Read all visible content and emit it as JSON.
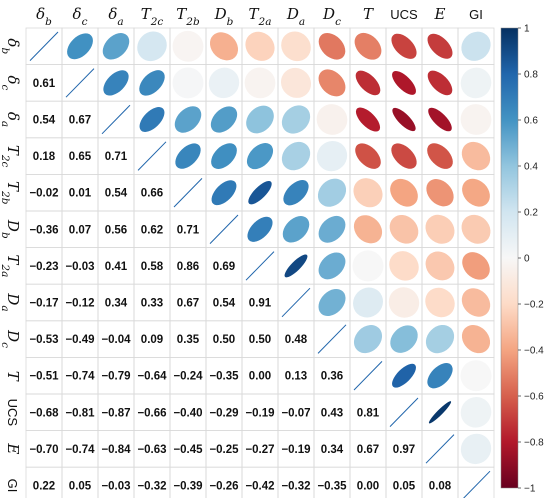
{
  "chart_data": {
    "type": "heatmap",
    "title": "",
    "variables": [
      {
        "base": "δ",
        "sub": "b",
        "italic": true
      },
      {
        "base": "δ",
        "sub": "c",
        "italic": true
      },
      {
        "base": "δ",
        "sub": "a",
        "italic": true
      },
      {
        "base": "T",
        "sub": "2c",
        "italic": true
      },
      {
        "base": "T",
        "sub": "2b",
        "italic": true
      },
      {
        "base": "D",
        "sub": "b",
        "italic": true
      },
      {
        "base": "T",
        "sub": "2a",
        "italic": true
      },
      {
        "base": "D",
        "sub": "a",
        "italic": true
      },
      {
        "base": "D",
        "sub": "c",
        "italic": true
      },
      {
        "base": "T",
        "sub": "",
        "italic": true
      },
      {
        "base": "UCS",
        "sub": "",
        "italic": false
      },
      {
        "base": "E",
        "sub": "",
        "italic": true
      },
      {
        "base": "GI",
        "sub": "",
        "italic": false
      }
    ],
    "matrix": [
      [
        1,
        0.61,
        0.54,
        0.18,
        -0.02,
        -0.36,
        -0.23,
        -0.17,
        -0.53,
        -0.51,
        -0.68,
        -0.7,
        0.22
      ],
      [
        0.61,
        1,
        0.67,
        0.65,
        0.01,
        0.07,
        -0.03,
        -0.12,
        -0.49,
        -0.74,
        -0.81,
        -0.74,
        0.05
      ],
      [
        0.54,
        0.67,
        1,
        0.71,
        0.54,
        0.56,
        0.41,
        0.34,
        -0.04,
        -0.79,
        -0.87,
        -0.84,
        -0.03
      ],
      [
        0.18,
        0.65,
        0.71,
        1,
        0.66,
        0.62,
        0.58,
        0.33,
        0.09,
        -0.64,
        -0.66,
        -0.63,
        -0.32
      ],
      [
        -0.02,
        0.01,
        0.54,
        0.66,
        1,
        0.71,
        0.86,
        0.67,
        0.35,
        -0.24,
        -0.4,
        -0.45,
        -0.39
      ],
      [
        -0.36,
        0.07,
        0.56,
        0.62,
        0.71,
        1,
        0.69,
        0.54,
        0.5,
        -0.35,
        -0.29,
        -0.25,
        -0.26
      ],
      [
        -0.23,
        -0.03,
        0.41,
        0.58,
        0.86,
        0.69,
        1,
        0.91,
        0.5,
        0.0,
        -0.19,
        -0.27,
        -0.42
      ],
      [
        -0.17,
        -0.12,
        0.34,
        0.33,
        0.67,
        0.54,
        0.91,
        1,
        0.48,
        0.13,
        -0.07,
        -0.19,
        -0.32
      ],
      [
        -0.53,
        -0.49,
        -0.04,
        0.09,
        0.35,
        0.5,
        0.5,
        0.48,
        1,
        0.36,
        0.43,
        0.34,
        -0.35
      ],
      [
        -0.51,
        -0.74,
        -0.79,
        -0.64,
        -0.24,
        -0.35,
        0.0,
        0.13,
        0.36,
        1,
        0.81,
        0.67,
        0.0
      ],
      [
        -0.68,
        -0.81,
        -0.87,
        -0.66,
        -0.4,
        -0.29,
        -0.19,
        -0.07,
        0.43,
        0.81,
        1,
        0.97,
        0.05
      ],
      [
        -0.7,
        -0.74,
        -0.84,
        -0.63,
        -0.45,
        -0.25,
        -0.27,
        -0.19,
        0.34,
        0.67,
        0.97,
        1,
        0.08
      ],
      [
        0.22,
        0.05,
        -0.03,
        -0.32,
        -0.39,
        -0.26,
        -0.42,
        -0.32,
        -0.35,
        0.0,
        0.05,
        0.08,
        1
      ]
    ],
    "lower_triangle": "numbers",
    "upper_triangle": "ellipses",
    "color_range": [
      -1,
      1
    ],
    "colorbar_ticks": [
      1,
      0.8,
      0.6,
      0.4,
      0.2,
      0,
      -0.2,
      -0.4,
      -0.6,
      -0.8,
      -1
    ],
    "colorbar_tick_labels": [
      "1",
      "0.8",
      "0.6",
      "0.4",
      "0.2",
      "0",
      "−0.2",
      "−0.4",
      "−0.6",
      "−0.8",
      "−1"
    ],
    "colors": {
      "negative_strong": "#67001f",
      "negative_mid": "#d6604d",
      "neutral": "#f7f7f7",
      "positive_mid": "#4393c3",
      "positive_strong": "#053061"
    },
    "legend_position": "right"
  }
}
